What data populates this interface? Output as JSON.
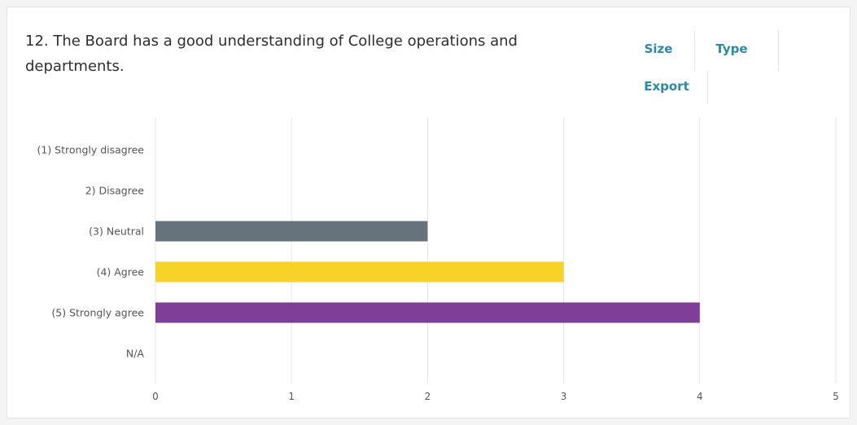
{
  "question": {
    "title": "12. The Board has a good understanding of College operations and departments."
  },
  "toolbar": {
    "size_label": "Size",
    "type_label": "Type",
    "export_label": "Export"
  },
  "colors": {
    "accent": "#2b8aa6",
    "grid": "#e6e6e6"
  },
  "chart_data": {
    "type": "bar",
    "orientation": "horizontal",
    "categories": [
      "(1) Strongly disagree",
      "2) Disagree",
      "(3) Neutral",
      "(4) Agree",
      "(5) Strongly agree",
      "N/A"
    ],
    "values": [
      0,
      0,
      2,
      3,
      4,
      0
    ],
    "colors": [
      "#7f3f98",
      "#66727c",
      "#66727c",
      "#f7d229",
      "#7f3f98",
      "#66727c"
    ],
    "xlim": [
      0,
      5
    ],
    "xticks": [
      "0",
      "1",
      "2",
      "3",
      "4",
      "5"
    ],
    "grid": true,
    "title": "",
    "xlabel": "",
    "ylabel": ""
  }
}
